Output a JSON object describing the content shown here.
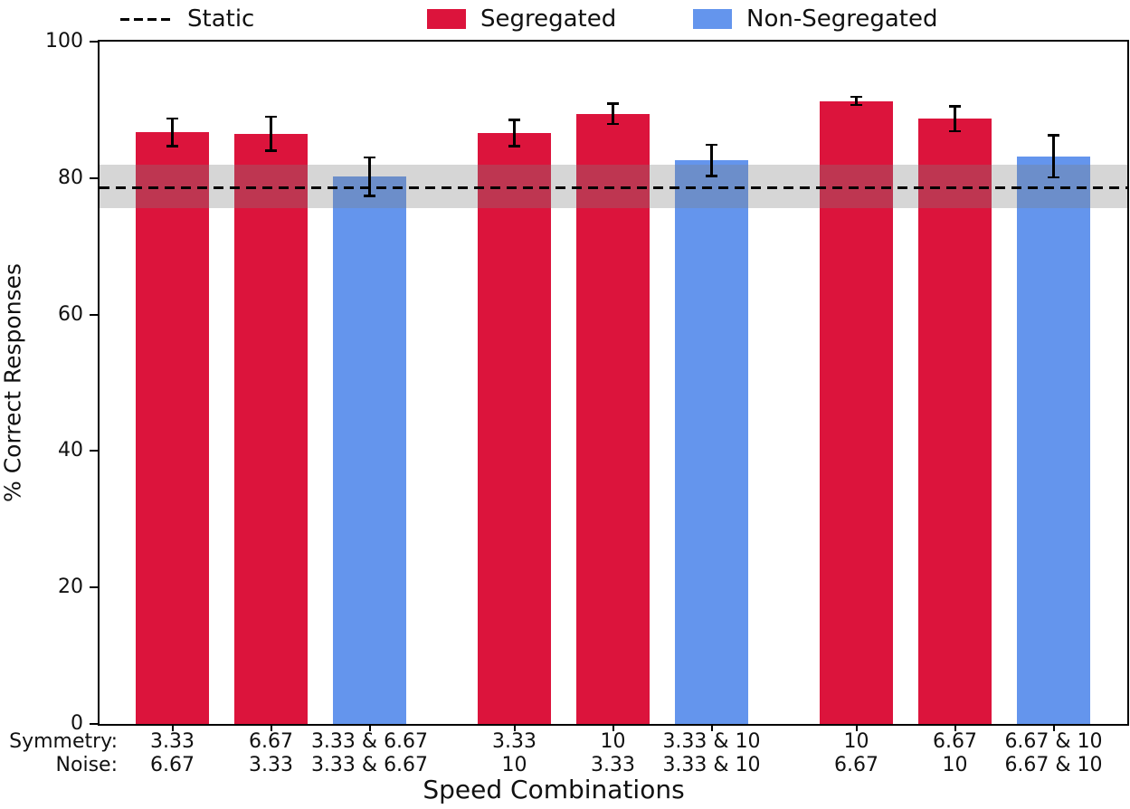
{
  "chart_data": {
    "type": "bar",
    "title": "",
    "xlabel": "Speed Combinations",
    "ylabel": "% Correct Responses",
    "ylim": [
      0,
      100
    ],
    "y_ticks": [
      "0",
      "20",
      "40",
      "60",
      "80",
      "100"
    ],
    "grid": false,
    "legend_position": "top",
    "row_headers": {
      "row1": "Symmetry:",
      "row2": "Noise:"
    },
    "legend": [
      {
        "label": "Static",
        "type": "dashed-line",
        "color": "#000000"
      },
      {
        "label": "Segregated",
        "type": "swatch",
        "color": "#DC143C"
      },
      {
        "label": "Non-Segregated",
        "type": "swatch",
        "color": "#6495ED"
      }
    ],
    "colors": {
      "Segregated": "#DC143C",
      "Non-Segregated": "#6495ED",
      "band": "rgba(128,128,128,0.32)",
      "static_line": "#000000"
    },
    "static_line": {
      "label": "Static",
      "value": 78.6,
      "band_low": 75.6,
      "band_high": 81.9
    },
    "bars": [
      {
        "symmetry": "3.33",
        "noise": "6.67",
        "series": "Segregated",
        "value": 86.7,
        "error": 2.0
      },
      {
        "symmetry": "6.67",
        "noise": "3.33",
        "series": "Segregated",
        "value": 86.5,
        "error": 2.5
      },
      {
        "symmetry": "3.33 & 6.67",
        "noise": "3.33 & 6.67",
        "series": "Non-Segregated",
        "value": 80.2,
        "error": 2.8
      },
      {
        "symmetry": "3.33",
        "noise": "10",
        "series": "Segregated",
        "value": 86.6,
        "error": 1.9
      },
      {
        "symmetry": "10",
        "noise": "3.33",
        "series": "Segregated",
        "value": 89.4,
        "error": 1.5
      },
      {
        "symmetry": "3.33 & 10",
        "noise": "3.33 & 10",
        "series": "Non-Segregated",
        "value": 82.6,
        "error": 2.3
      },
      {
        "symmetry": "10",
        "noise": "6.67",
        "series": "Segregated",
        "value": 91.3,
        "error": 0.6
      },
      {
        "symmetry": "6.67",
        "noise": "10",
        "series": "Segregated",
        "value": 88.7,
        "error": 1.8
      },
      {
        "symmetry": "6.67 & 10",
        "noise": "6.67 & 10",
        "series": "Non-Segregated",
        "value": 83.2,
        "error": 3.1
      }
    ]
  }
}
